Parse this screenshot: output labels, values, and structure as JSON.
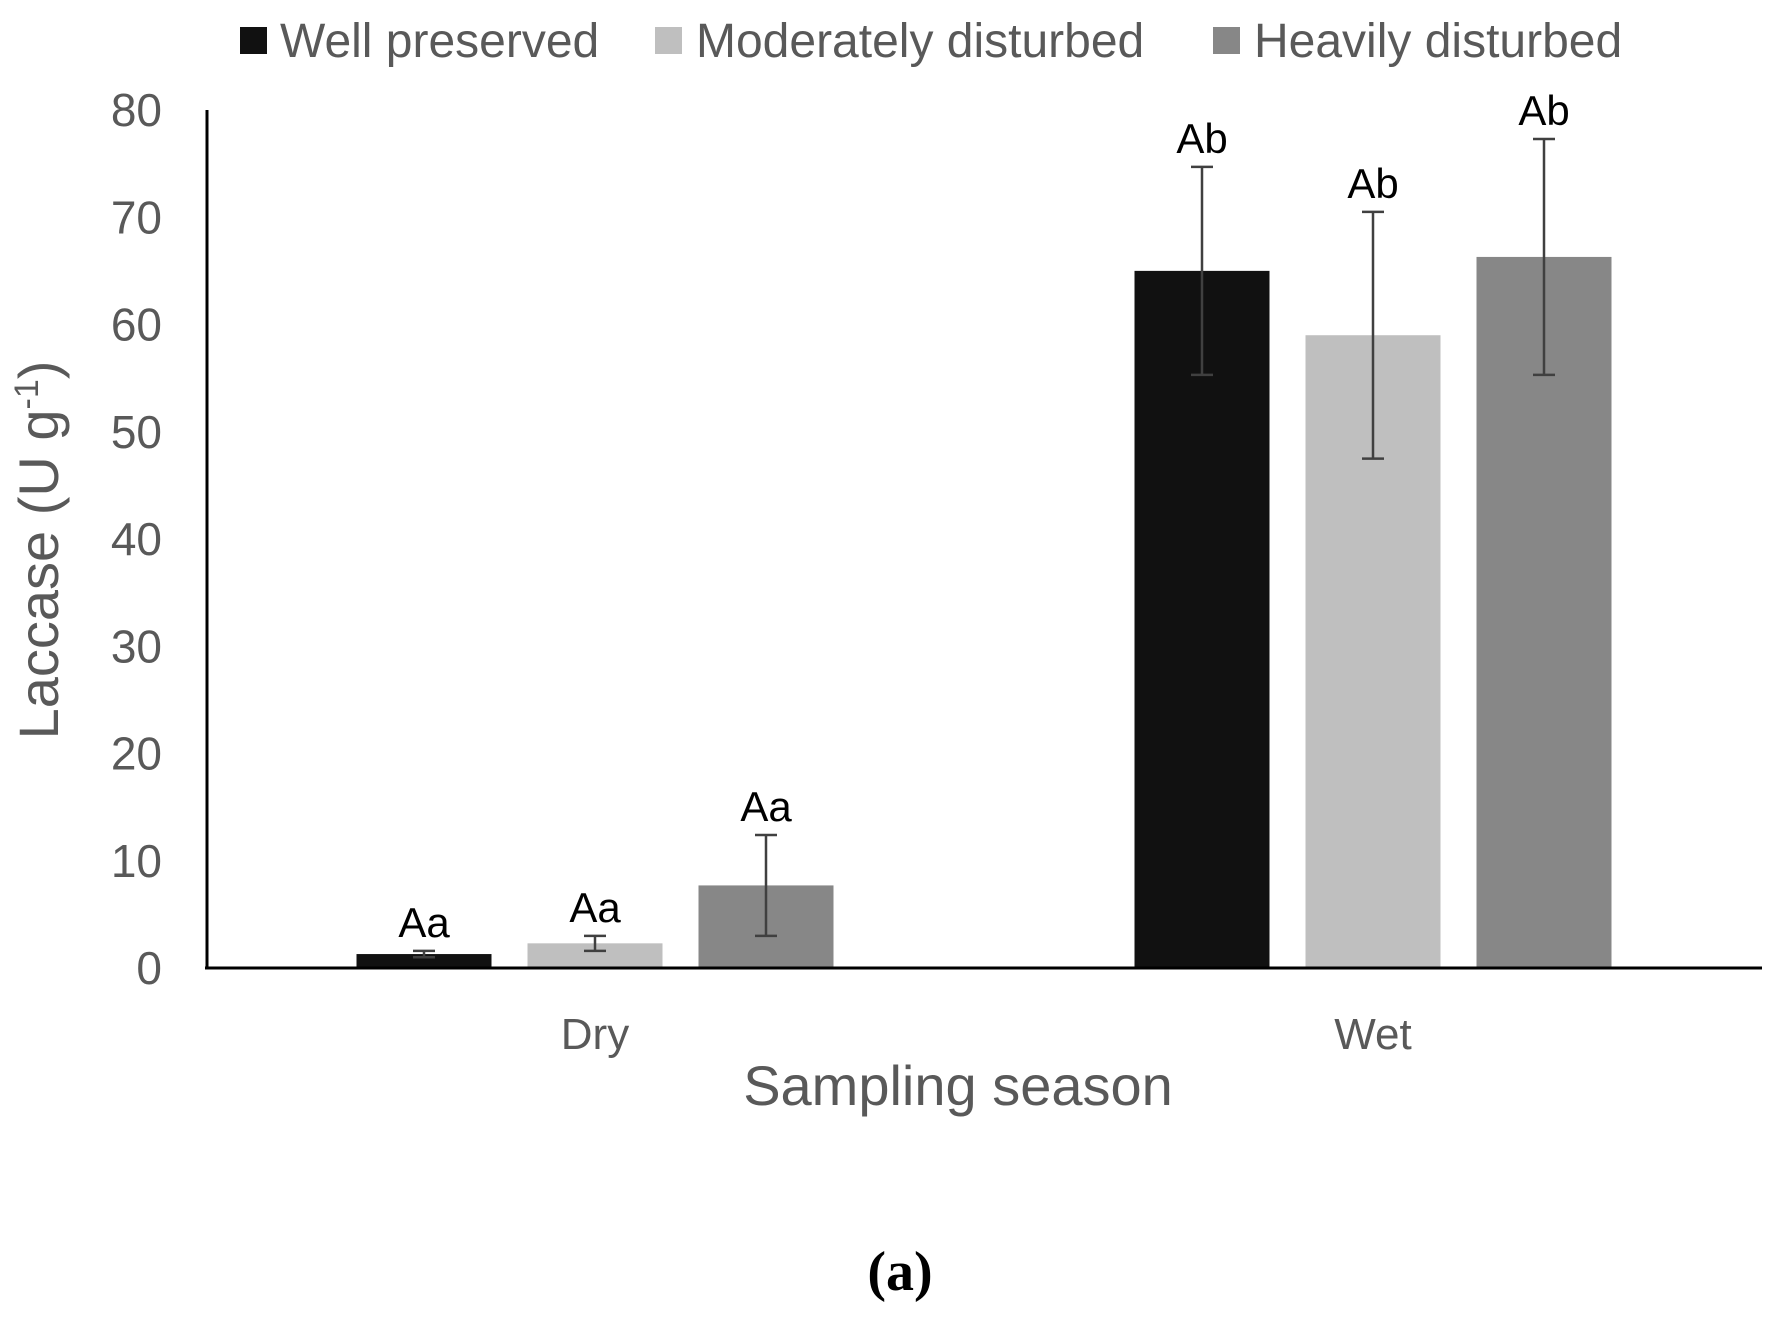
{
  "chart_data": {
    "type": "bar",
    "title": "",
    "xlabel": "Sampling season",
    "ylabel": "Laccase (U g⁻¹)",
    "ylim": [
      0,
      80
    ],
    "yticks": [
      "0",
      "10",
      "20",
      "30",
      "40",
      "50",
      "60",
      "70",
      "80"
    ],
    "categories": [
      "Dry",
      "Wet"
    ],
    "series": [
      {
        "name": "Well preserved",
        "color": "#111111",
        "values": [
          1.3,
          65.0
        ],
        "errors": [
          0.3,
          9.7
        ],
        "letters": [
          "Aa",
          "Ab"
        ]
      },
      {
        "name": "Moderately disturbed",
        "color": "#bfbfbf",
        "values": [
          2.3,
          59.0
        ],
        "errors": [
          0.7,
          11.5
        ],
        "letters": [
          "Aa",
          "Ab"
        ]
      },
      {
        "name": "Heavily disturbed",
        "color": "#878787",
        "values": [
          7.7,
          66.3
        ],
        "errors": [
          4.7,
          11.0
        ],
        "letters": [
          "Aa",
          "Ab"
        ]
      }
    ],
    "legend_position": "top",
    "grid": false
  },
  "panel_label": "(a)"
}
